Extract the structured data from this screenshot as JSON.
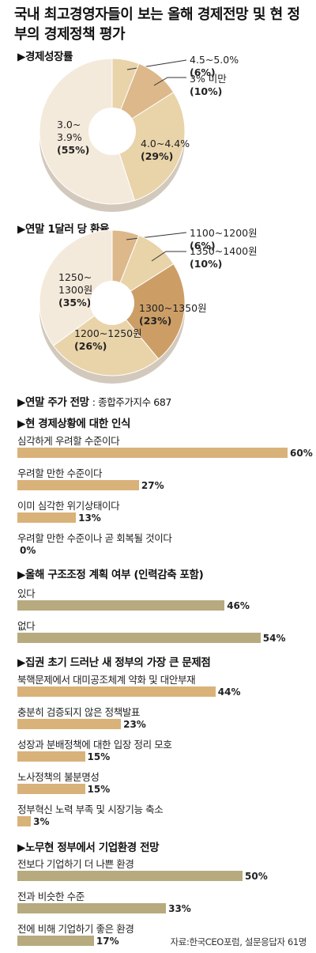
{
  "title": "국내 최고경영자들이 보는 올해 경제전망 및 현 정부의 경제정책 평가",
  "colors": {
    "pie_light": "#f4eadb",
    "pie_mid": "#e9d3a9",
    "pie_tan": "#dcb88a",
    "pie_dark": "#cc9e66",
    "pie_hole": "#ffffff",
    "bar_tan": "#d9b27a",
    "bar_olive": "#b7aa7e"
  },
  "sections": {
    "growth": "▶경제성장률",
    "fx": "▶연말 1달러 당 환율",
    "stock": "▶연말 주가 전망",
    "stock_value": ": 종합주가지수 687",
    "perception": "▶현 경제상황에 대한 인식",
    "restructuring": "▶올해 구조조정 계획 여부 (인력감축 포함)",
    "problems": "▶집권 초기 드러난 새 정부의 가장 큰 문제점",
    "outlook": "▶노무현 정부에서 기업환경 전망"
  },
  "chart_data": [
    {
      "type": "pie",
      "title": "경제성장률",
      "slices": [
        {
          "label_lines": [
            "4.5~5.0%",
            "(6%)"
          ],
          "value": 6
        },
        {
          "label_lines": [
            "3% 미만",
            "(10%)"
          ],
          "value": 10
        },
        {
          "label_lines": [
            "4.0~4.4%",
            "(29%)"
          ],
          "value": 29
        },
        {
          "label_lines": [
            "3.0~",
            "3.9%",
            "(55%)"
          ],
          "value": 55
        }
      ]
    },
    {
      "type": "pie",
      "title": "연말 1달러 당 환율",
      "slices": [
        {
          "label_lines": [
            "1100~1200원",
            "(6%)"
          ],
          "value": 6
        },
        {
          "label_lines": [
            "1350~1400원",
            "(10%)"
          ],
          "value": 10
        },
        {
          "label_lines": [
            "1300~1350원",
            "(23%)"
          ],
          "value": 23
        },
        {
          "label_lines": [
            "1200~1250원",
            "(26%)"
          ],
          "value": 26
        },
        {
          "label_lines": [
            "1250~",
            "1300원",
            "(35%)"
          ],
          "value": 35
        }
      ]
    },
    {
      "type": "bar",
      "title": "현 경제상황에 대한 인식",
      "categories": [
        "심각하게 우려할 수준이다",
        "우려할 만한 수준이다",
        "이미 심각한 위기상태이다",
        "우려할 만한 수준이나 곧 회복될 것이다"
      ],
      "values": [
        60,
        27,
        13,
        0
      ],
      "value_labels": [
        "60%",
        "27%",
        "13%",
        "0%"
      ]
    },
    {
      "type": "bar",
      "title": "올해 구조조정 계획 여부 (인력감축 포함)",
      "categories": [
        "있다",
        "없다"
      ],
      "values": [
        46,
        54
      ],
      "value_labels": [
        "46%",
        "54%"
      ]
    },
    {
      "type": "bar",
      "title": "집권 초기 드러난 새 정부의 가장 큰 문제점",
      "categories": [
        "북핵문제에서 대미공조체계 약화 및 대안부재",
        "충분히 검증되지 않은 정책발표",
        "성장과 분배정책에 대한 입장 정리 모호",
        "노사정책의 불분명성",
        "정부혁신 노력 부족 및 시장기능 축소"
      ],
      "values": [
        44,
        23,
        15,
        15,
        3
      ],
      "value_labels": [
        "44%",
        "23%",
        "15%",
        "15%",
        "3%"
      ]
    },
    {
      "type": "bar",
      "title": "노무현 정부에서 기업환경 전망",
      "categories": [
        "전보다 기업하기 더 나쁜 환경",
        "전과 비슷한 수준",
        "전에 비해 기업하기 좋은 환경"
      ],
      "values": [
        50,
        33,
        17
      ],
      "value_labels": [
        "50%",
        "33%",
        "17%"
      ]
    }
  ],
  "source": "자료:한국CEO포럼, 설문응답자 61명"
}
